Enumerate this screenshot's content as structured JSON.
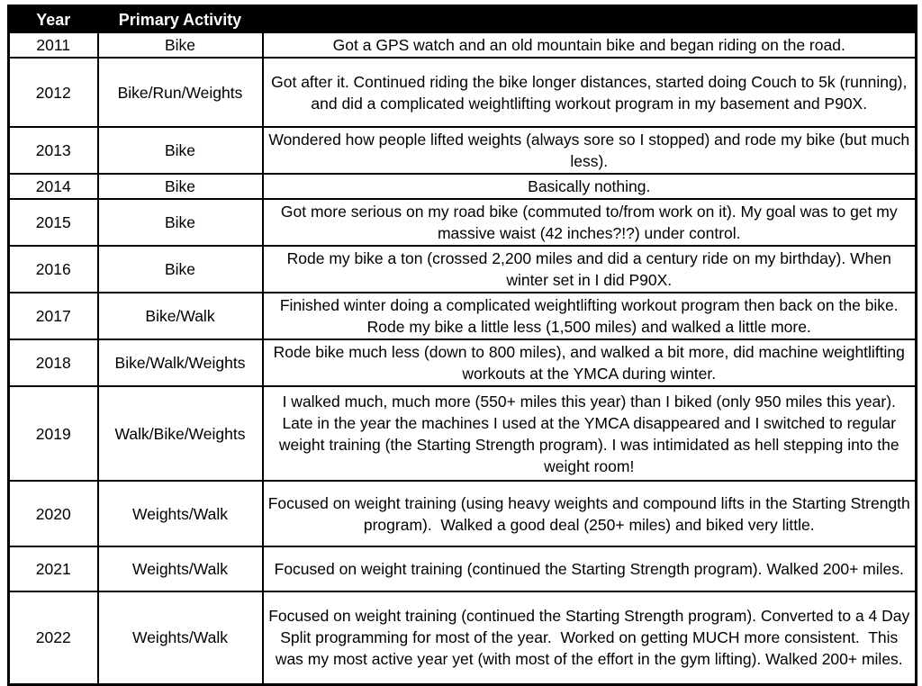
{
  "table": {
    "headers": {
      "year": "Year",
      "activity": "Primary Activity",
      "description": ""
    },
    "rows": [
      {
        "year": "2011",
        "activity": "Bike",
        "description": "Got a GPS watch and an old mountain bike and began riding on the road."
      },
      {
        "year": "2012",
        "activity": "Bike/Run/Weights",
        "description": "Got after it. Continued riding the bike longer distances, started doing Couch to 5k (running), and did a complicated weightlifting workout program in my basement and P90X."
      },
      {
        "year": "2013",
        "activity": "Bike",
        "description": "Wondered how people lifted weights (always sore so I stopped) and rode my bike (but much less)."
      },
      {
        "year": "2014",
        "activity": "Bike",
        "description": "Basically nothing."
      },
      {
        "year": "2015",
        "activity": "Bike",
        "description": "Got more serious on my road bike (commuted to/from work on it). My goal was to get my massive waist (42 inches?!?) under control."
      },
      {
        "year": "2016",
        "activity": "Bike",
        "description": "Rode my bike a ton (crossed 2,200 miles and did a century ride on my birthday). When winter set in I did P90X."
      },
      {
        "year": "2017",
        "activity": "Bike/Walk",
        "description": "Finished winter doing a complicated weightlifting workout program then back on the bike.  Rode my bike a little less (1,500 miles) and walked a little more."
      },
      {
        "year": "2018",
        "activity": "Bike/Walk/Weights",
        "description": "Rode bike much less (down to 800 miles), and walked a bit more, did machine weightlifting workouts at the YMCA during winter."
      },
      {
        "year": "2019",
        "activity": "Walk/Bike/Weights",
        "description": "I walked much, much more (550+ miles this year) than I biked (only 950 miles this year). Late in the year the machines I used at the YMCA disappeared and I switched to regular weight training (the Starting Strength program). I was intimidated as hell stepping into the weight room!"
      },
      {
        "year": "2020",
        "activity": "Weights/Walk",
        "description": "Focused on weight training (using heavy weights and compound lifts in the Starting Strength program).  Walked a good deal (250+ miles) and biked very little."
      },
      {
        "year": "2021",
        "activity": "Weights/Walk",
        "description": "Focused on weight training (continued the Starting Strength program). Walked 200+ miles."
      },
      {
        "year": "2022",
        "activity": "Weights/Walk",
        "description": "Focused on weight training (continued the Starting Strength program). Converted to a 4 Day Split programming for most of the year.  Worked on getting MUCH more consistent.  This was my most active year yet (with most of the effort in the gym lifting). Walked 200+ miles."
      }
    ]
  }
}
